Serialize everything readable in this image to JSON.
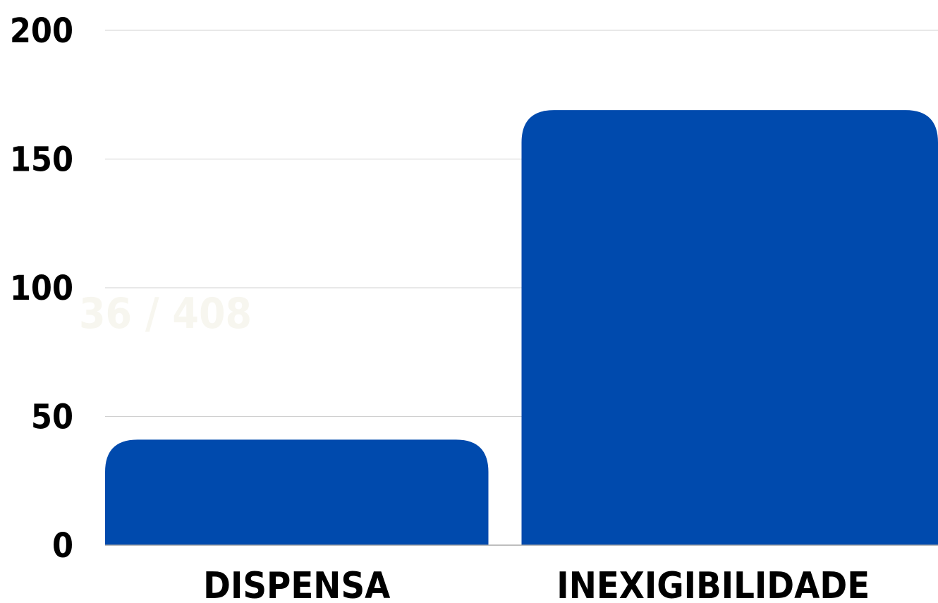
{
  "chart_data": {
    "type": "bar",
    "categories": [
      "DISPENSA",
      "INEXIGIBILIDADE"
    ],
    "values": [
      41,
      169
    ],
    "ylim": [
      0,
      200
    ],
    "yticks": [
      0,
      50,
      100,
      150,
      200
    ],
    "grid": true,
    "legend": "none",
    "title": "",
    "xlabel": "",
    "ylabel": "",
    "overlay_text": "36 / 408",
    "colors": {
      "bar": "#004aad",
      "grid": "#d0d0d0",
      "axis": "#a8a8a8",
      "overlay": "#f7f6ef"
    }
  }
}
